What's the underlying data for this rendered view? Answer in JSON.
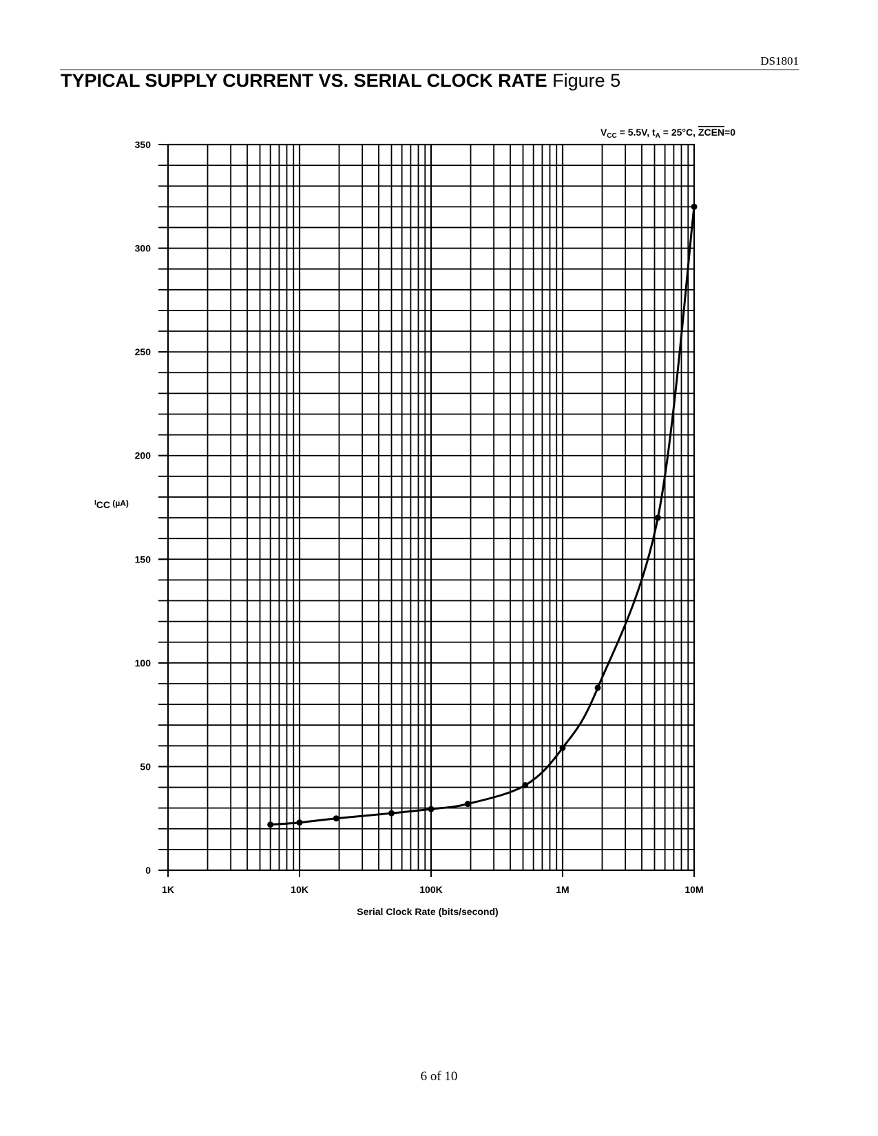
{
  "header": {
    "doc_id": "DS1801",
    "title_bold": "TYPICAL SUPPLY CURRENT VS. SERIAL CLOCK RATE",
    "title_regular": "Figure 5"
  },
  "footer": {
    "page": "6 of 10"
  },
  "chart_data": {
    "type": "line",
    "title": "",
    "conditions": {
      "vcc_main": "V",
      "vcc_sub": "CC",
      "vcc_value": " = 5.5V, t",
      "ta_sub": "A",
      "ta_value": " = 25°C, ",
      "zcen": "ZCEN",
      "zcen_value": "=0"
    },
    "ylabel": {
      "main": "I",
      "sub": "CC",
      "unit": " (µA)"
    },
    "xlabel": "Serial Clock Rate (bits/second)",
    "x_scale": "log",
    "xlim": [
      1000,
      10000000
    ],
    "ylim": [
      0,
      350
    ],
    "grid": true,
    "x_ticks": [
      {
        "value": 1000,
        "label": "1K"
      },
      {
        "value": 10000,
        "label": "10K"
      },
      {
        "value": 100000,
        "label": "100K"
      },
      {
        "value": 1000000,
        "label": "1M"
      },
      {
        "value": 10000000,
        "label": "10M"
      }
    ],
    "y_ticks": [
      {
        "value": 0,
        "label": "0"
      },
      {
        "value": 50,
        "label": "50"
      },
      {
        "value": 100,
        "label": "100"
      },
      {
        "value": 150,
        "label": "150"
      },
      {
        "value": 200,
        "label": "200"
      },
      {
        "value": 250,
        "label": "250"
      },
      {
        "value": 300,
        "label": "300"
      },
      {
        "value": 350,
        "label": "350"
      }
    ],
    "y_minor_step": 10,
    "series": [
      {
        "points": [
          {
            "x": 6000,
            "y": 22
          },
          {
            "x": 10000,
            "y": 23
          },
          {
            "x": 19000,
            "y": 25
          },
          {
            "x": 50000,
            "y": 27.5
          },
          {
            "x": 100000,
            "y": 29.5
          },
          {
            "x": 190000,
            "y": 32
          },
          {
            "x": 520000,
            "y": 41
          },
          {
            "x": 1000000,
            "y": 59
          },
          {
            "x": 1850000,
            "y": 88
          },
          {
            "x": 5300000,
            "y": 170
          },
          {
            "x": 10000000,
            "y": 320
          }
        ]
      }
    ]
  }
}
